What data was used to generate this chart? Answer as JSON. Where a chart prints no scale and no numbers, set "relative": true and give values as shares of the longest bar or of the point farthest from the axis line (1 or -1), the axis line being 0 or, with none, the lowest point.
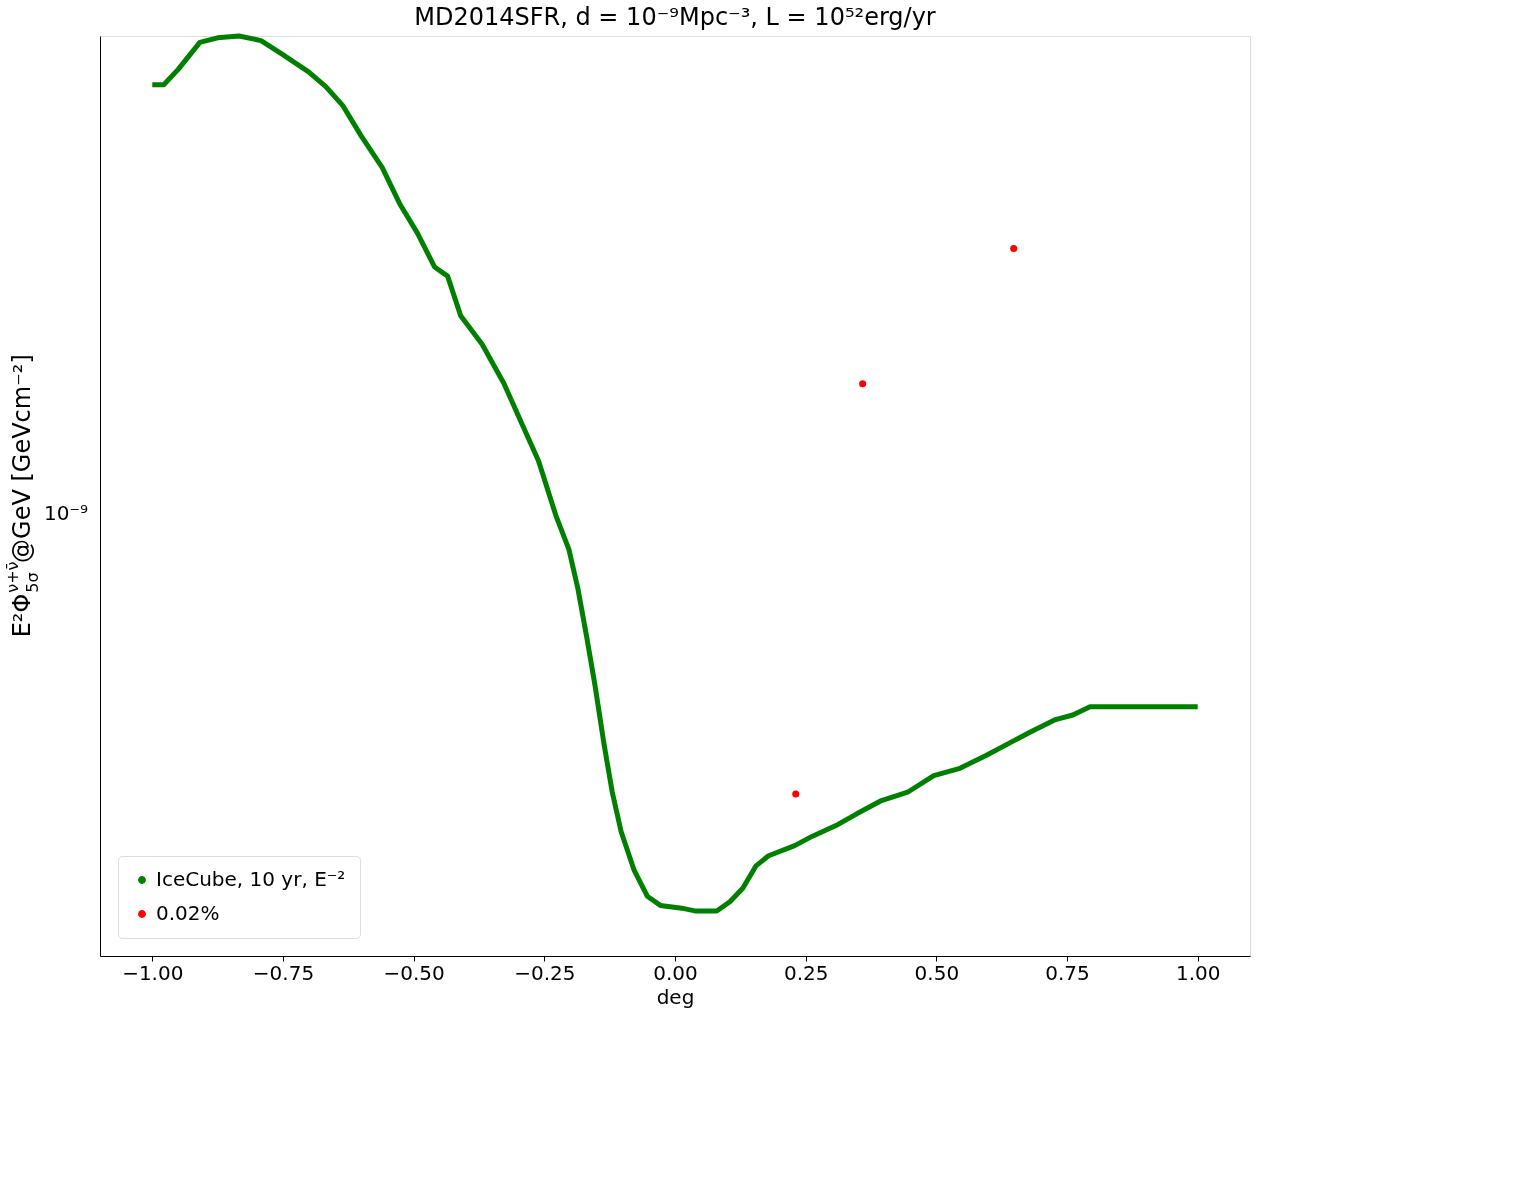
{
  "chart_data": {
    "type": "line",
    "title": "MD2014SFR, d = 10⁻⁹Mpc⁻³, L = 10⁵²erg/yr",
    "xlabel": "deg",
    "ylabel": "E²Φ$_{5σ}$$^{ν+ν̄}$@GeV [GeVcm⁻²]",
    "relative": true,
    "xlim": [
      -1.1,
      1.1
    ],
    "xticks": [
      {
        "value": -1.0,
        "label": "−1.00"
      },
      {
        "value": -0.75,
        "label": "−0.75"
      },
      {
        "value": -0.5,
        "label": "−0.50"
      },
      {
        "value": -0.25,
        "label": "−0.25"
      },
      {
        "value": 0.0,
        "label": "0.00"
      },
      {
        "value": 0.25,
        "label": "0.25"
      },
      {
        "value": 0.5,
        "label": "0.50"
      },
      {
        "value": 0.75,
        "label": "0.75"
      },
      {
        "value": 1.0,
        "label": "1.00"
      }
    ],
    "annotations": [
      "10⁻⁹"
    ],
    "grid": false,
    "legend": "bottom left",
    "series": [
      {
        "name": "IceCube, 10 yr, E⁻²",
        "color": "#008000",
        "x": [
          -1.0,
          -0.978,
          -0.95,
          -0.909,
          -0.875,
          -0.834,
          -0.792,
          -0.751,
          -0.701,
          -0.668,
          -0.635,
          -0.601,
          -0.56,
          -0.527,
          -0.493,
          -0.46,
          -0.435,
          -0.41,
          -0.369,
          -0.327,
          -0.294,
          -0.261,
          -0.228,
          -0.203,
          -0.186,
          -0.169,
          -0.153,
          -0.136,
          -0.12,
          -0.103,
          -0.078,
          -0.053,
          -0.028,
          0.013,
          0.038,
          0.08,
          0.105,
          0.13,
          0.155,
          0.179,
          0.229,
          0.262,
          0.312,
          0.346,
          0.395,
          0.445,
          0.495,
          0.545,
          0.595,
          0.645,
          0.678,
          0.728,
          0.761,
          0.794,
          0.844,
          0.91,
          1.0
        ],
        "values": [
          0.947,
          0.947,
          0.964,
          0.993,
          0.998,
          1.0,
          0.995,
          0.98,
          0.961,
          0.945,
          0.924,
          0.892,
          0.857,
          0.818,
          0.786,
          0.749,
          0.739,
          0.696,
          0.665,
          0.622,
          0.58,
          0.538,
          0.479,
          0.442,
          0.4,
          0.347,
          0.294,
          0.231,
          0.178,
          0.135,
          0.093,
          0.065,
          0.055,
          0.052,
          0.049,
          0.049,
          0.059,
          0.074,
          0.098,
          0.109,
          0.12,
          0.13,
          0.143,
          0.154,
          0.169,
          0.178,
          0.196,
          0.204,
          0.218,
          0.233,
          0.243,
          0.257,
          0.262,
          0.271,
          0.271,
          0.271,
          0.271
        ]
      },
      {
        "name": "0.02%",
        "type": "scatter",
        "color": "#ff0000",
        "marker": "circle",
        "x": [
          0.231,
          0.359,
          0.648
        ],
        "values": [
          0.176,
          0.622,
          0.769
        ]
      }
    ]
  }
}
